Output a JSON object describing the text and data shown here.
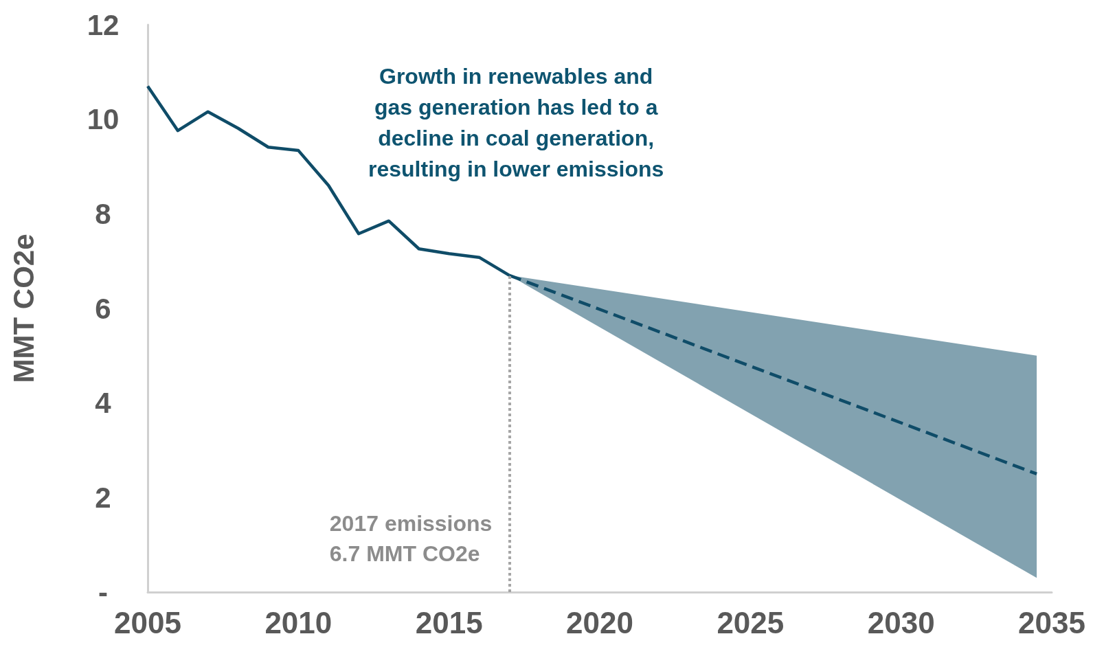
{
  "chart_data": {
    "type": "line",
    "ylabel": "MMT CO2e",
    "xlim": [
      2005,
      2035
    ],
    "xticks": [
      2005,
      2010,
      2015,
      2020,
      2025,
      2030,
      2035
    ],
    "ylim": [
      0,
      12
    ],
    "yticks": [
      {
        "value": 0,
        "label": "-"
      },
      2,
      4,
      6,
      8,
      10,
      12
    ],
    "grid": false,
    "marker": "none",
    "series": [
      {
        "color": "#0f4c68",
        "line_style": "solid",
        "x": [
          2005,
          2006,
          2007,
          2008,
          2009,
          2010,
          2011,
          2012,
          2013,
          2014,
          2015,
          2016,
          2017
        ],
        "values": [
          10.7,
          9.76,
          10.16,
          9.81,
          9.41,
          9.34,
          8.6,
          7.58,
          7.85,
          7.26,
          7.16,
          7.08,
          6.7
        ]
      },
      {
        "color": "#0f4c68",
        "line_style": "dashed",
        "x": [
          2017,
          2034.5
        ],
        "values": [
          6.7,
          2.5
        ],
        "lower": [
          6.7,
          0.3
        ],
        "upper": [
          6.7,
          5.0
        ]
      }
    ],
    "ref_lines": [
      {
        "axis": "x",
        "value": 2017,
        "label": "2017 emissions\n6.7 MMT CO2e",
        "color": "#a6a6a6",
        "line_style": "dotted"
      }
    ],
    "annotations": [
      "Growth in renewables and\ngas generation has led to a\ndecline in coal generation,\nresulting in lower emissions"
    ]
  }
}
